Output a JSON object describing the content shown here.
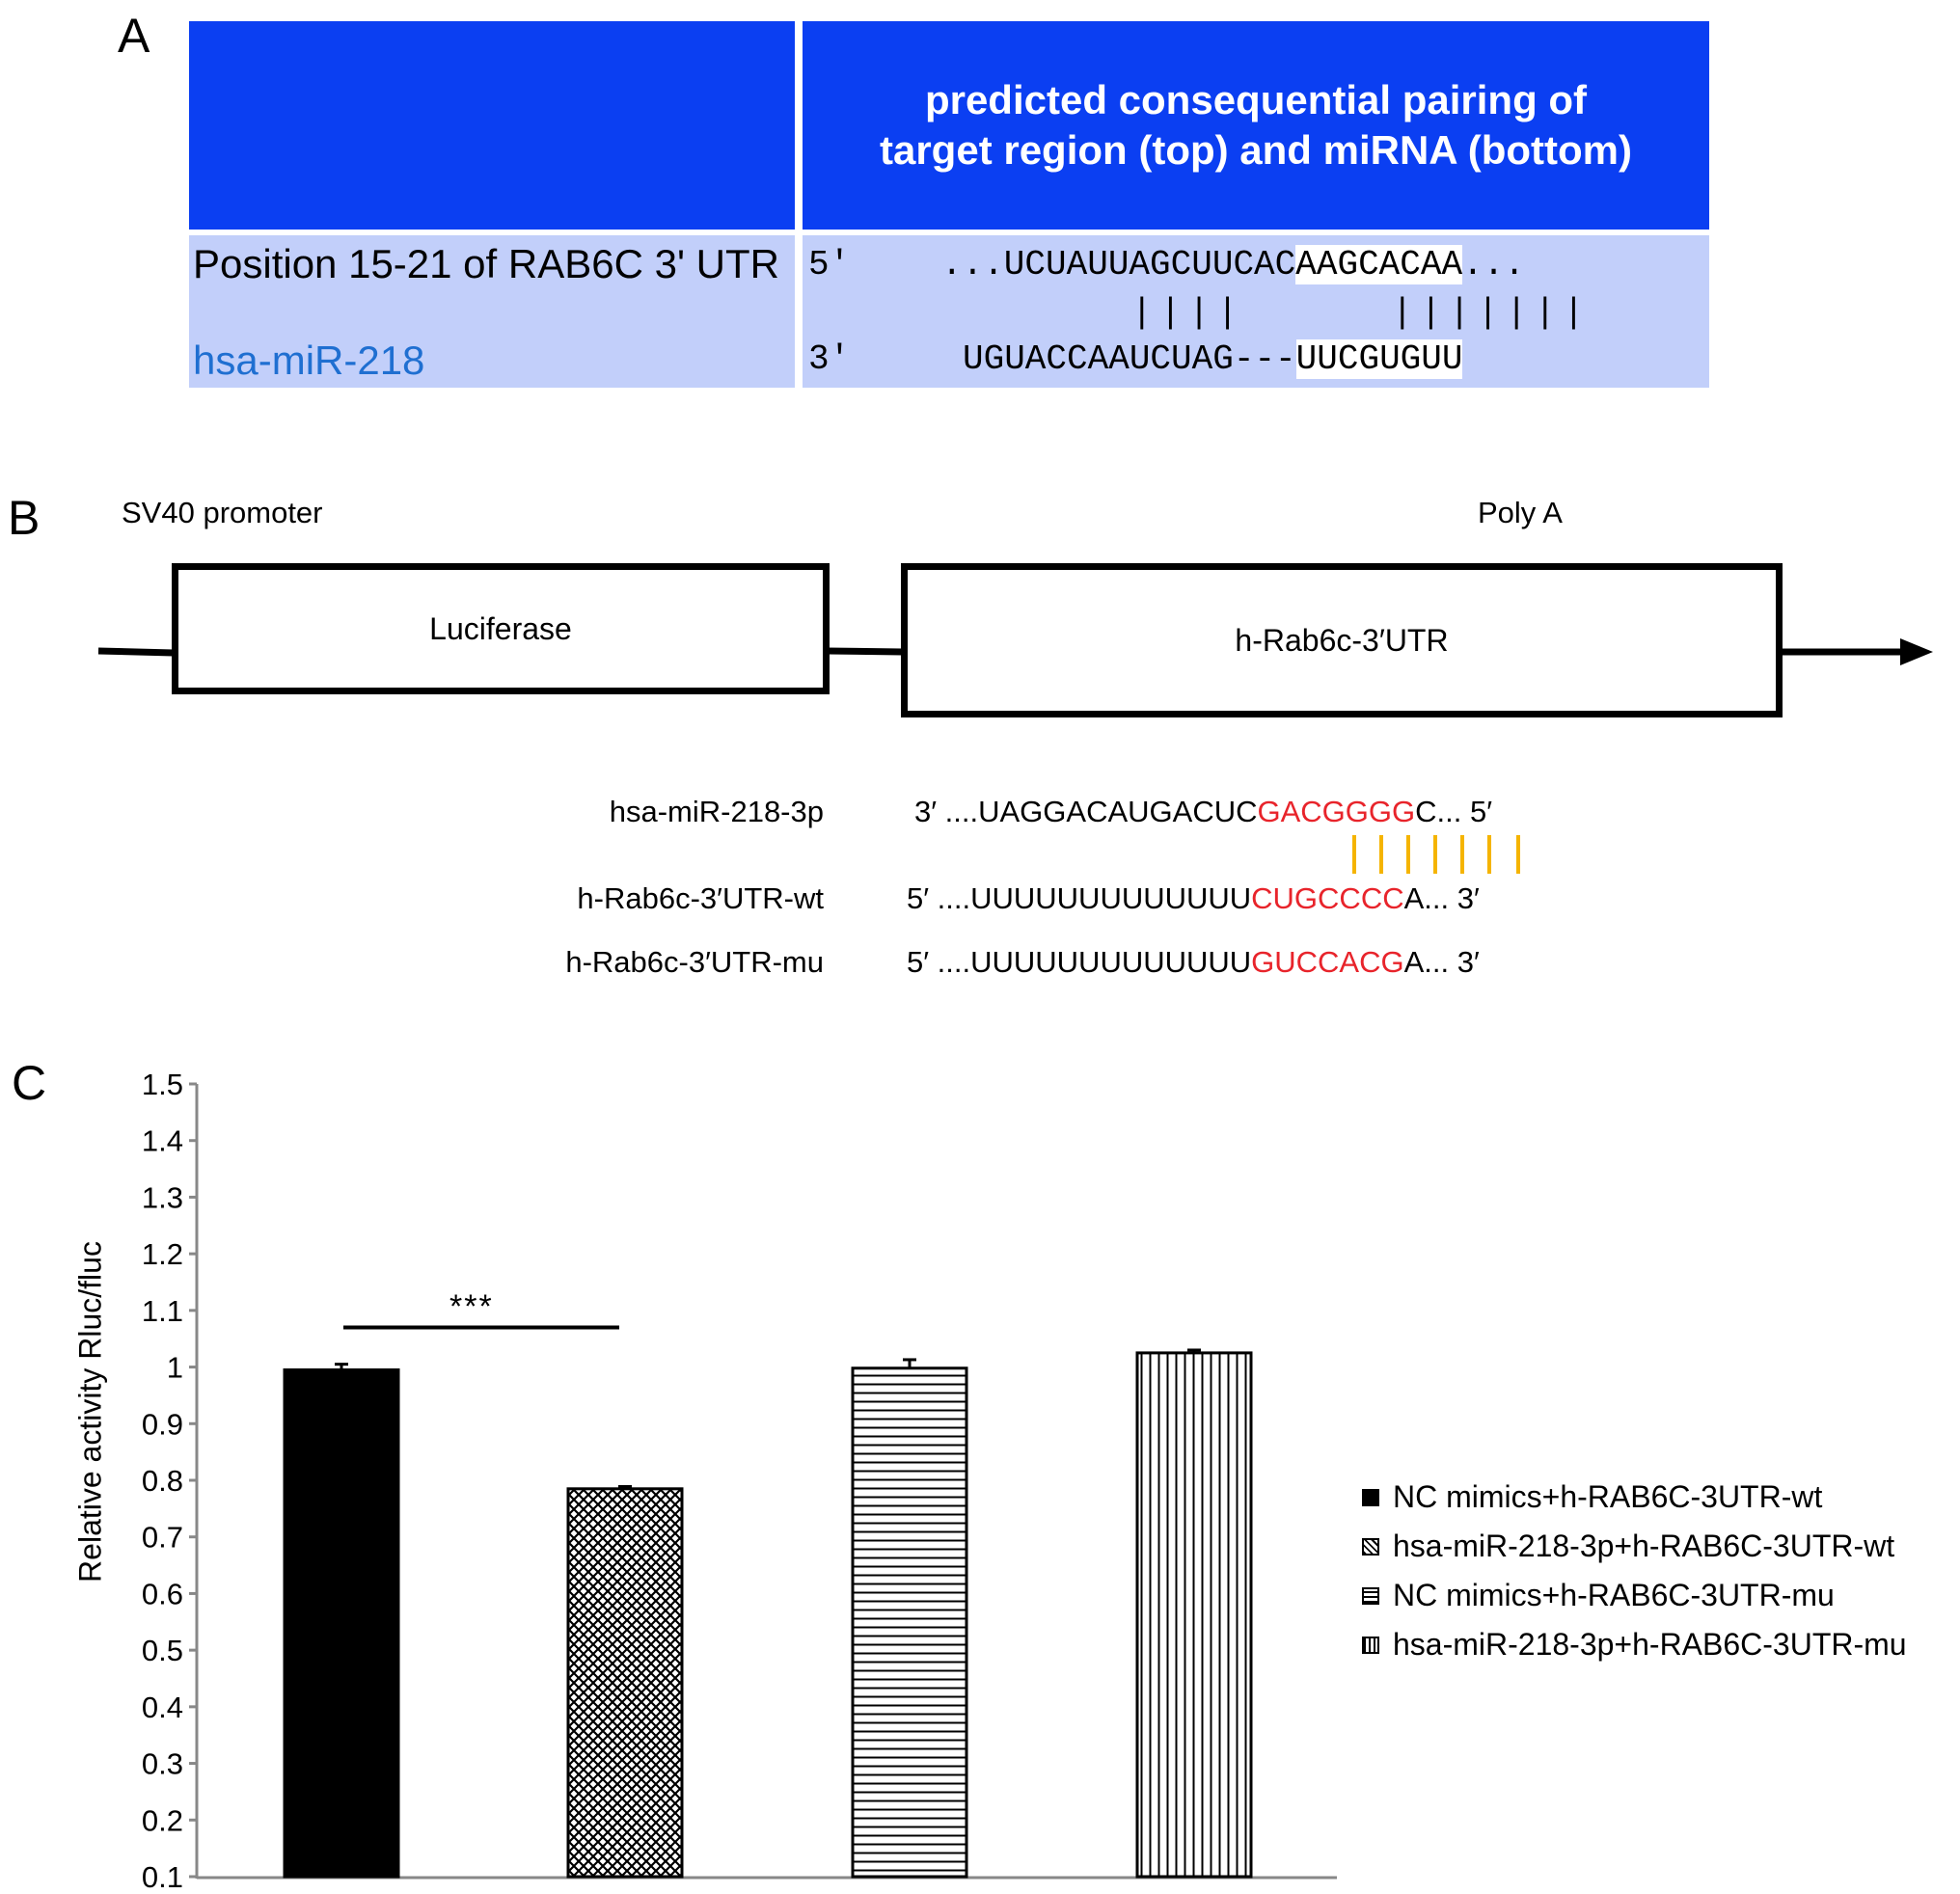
{
  "panel_a": {
    "letter": "A",
    "header": "predicted consequential pairing of target region (top) and miRNA (bottom)",
    "row1_label": "Position 15-21 of RAB6C 3' UTR",
    "row2_label": "hsa-miR-218",
    "top_prime": "5'",
    "top_seq_pre": "...UCUAUUAGCUUCAC",
    "top_seq_seed": "AAGCACAA",
    "top_seq_post": "...",
    "pair_left": "||||",
    "pair_right": "|||||||",
    "bottom_prime": "3'",
    "bottom_seq_pre": "UGUACCAAUCUAG---",
    "bottom_seq_seed": "UUCGUGUU"
  },
  "panel_b": {
    "letter": "B",
    "promoter": "SV40 promoter",
    "polya": "Poly A",
    "box1": "Luciferase",
    "box2": "h-Rab6c-3′UTR",
    "mir_label": "hsa-miR-218-3p",
    "mir_prefix": "3′ ....UAGGACAUGACUC",
    "mir_seed": "GACGGGG",
    "mir_suffix": "C... 5′",
    "wt_label": "h-Rab6c-3′UTR-wt",
    "wt_prefix": "5′ ....UUUUUUUUUUUUU",
    "wt_seed": "CUGCCCC",
    "wt_suffix": "A... 3′",
    "mu_label": "h-Rab6c-3′UTR-mu",
    "mu_prefix": "5′ ....UUUUUUUUUUUUU",
    "mu_seed": "GUCCACG",
    "mu_suffix": "A... 3′",
    "colors": {
      "seed": "#e8242b",
      "pair_lines": "#f5b400"
    }
  },
  "panel_c": {
    "letter": "C",
    "significance": "***"
  },
  "chart_data": {
    "type": "bar",
    "ylabel": "Relative activity Rluc/fluc",
    "ylim": [
      0.1,
      1.5
    ],
    "yticks": [
      "0.1",
      "0.2",
      "0.3",
      "0.4",
      "0.5",
      "0.6",
      "0.7",
      "0.8",
      "0.9",
      "1",
      "1.1",
      "1.2",
      "1.3",
      "1.4",
      "1.5"
    ],
    "grid": false,
    "legend_position": "right",
    "series": [
      {
        "name": "NC mimics+h-RAB6C-3UTR-wt",
        "value": 0.995,
        "error": 0.01,
        "pattern": "solid"
      },
      {
        "name": "hsa-miR-218-3p+h-RAB6C-3UTR-wt",
        "value": 0.785,
        "error": 0.004,
        "pattern": "crosshatch"
      },
      {
        "name": "NC mimics+h-RAB6C-3UTR-mu",
        "value": 0.998,
        "error": 0.015,
        "pattern": "horizontal"
      },
      {
        "name": "hsa-miR-218-3p+h-RAB6C-3UTR-mu",
        "value": 1.025,
        "error": 0.005,
        "pattern": "vertical"
      }
    ]
  }
}
